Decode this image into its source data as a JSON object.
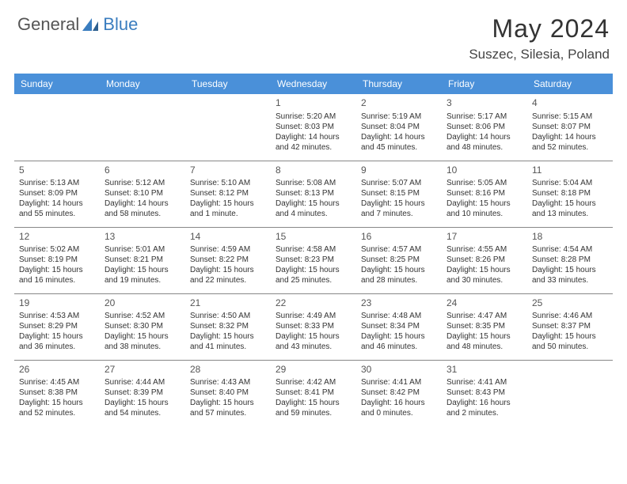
{
  "logo": {
    "general": "General",
    "blue": "Blue"
  },
  "title": "May 2024",
  "location": "Suszec, Silesia, Poland",
  "colors": {
    "header_bg": "#4a90d9",
    "header_text": "#ffffff",
    "border": "#888888",
    "logo_gray": "#555555",
    "logo_blue": "#3a7dbf",
    "text": "#333333"
  },
  "day_headers": [
    "Sunday",
    "Monday",
    "Tuesday",
    "Wednesday",
    "Thursday",
    "Friday",
    "Saturday"
  ],
  "weeks": [
    [
      null,
      null,
      null,
      {
        "d": "1",
        "sr": "5:20 AM",
        "ss": "8:03 PM",
        "dl": "14 hours and 42 minutes."
      },
      {
        "d": "2",
        "sr": "5:19 AM",
        "ss": "8:04 PM",
        "dl": "14 hours and 45 minutes."
      },
      {
        "d": "3",
        "sr": "5:17 AM",
        "ss": "8:06 PM",
        "dl": "14 hours and 48 minutes."
      },
      {
        "d": "4",
        "sr": "5:15 AM",
        "ss": "8:07 PM",
        "dl": "14 hours and 52 minutes."
      }
    ],
    [
      {
        "d": "5",
        "sr": "5:13 AM",
        "ss": "8:09 PM",
        "dl": "14 hours and 55 minutes."
      },
      {
        "d": "6",
        "sr": "5:12 AM",
        "ss": "8:10 PM",
        "dl": "14 hours and 58 minutes."
      },
      {
        "d": "7",
        "sr": "5:10 AM",
        "ss": "8:12 PM",
        "dl": "15 hours and 1 minute."
      },
      {
        "d": "8",
        "sr": "5:08 AM",
        "ss": "8:13 PM",
        "dl": "15 hours and 4 minutes."
      },
      {
        "d": "9",
        "sr": "5:07 AM",
        "ss": "8:15 PM",
        "dl": "15 hours and 7 minutes."
      },
      {
        "d": "10",
        "sr": "5:05 AM",
        "ss": "8:16 PM",
        "dl": "15 hours and 10 minutes."
      },
      {
        "d": "11",
        "sr": "5:04 AM",
        "ss": "8:18 PM",
        "dl": "15 hours and 13 minutes."
      }
    ],
    [
      {
        "d": "12",
        "sr": "5:02 AM",
        "ss": "8:19 PM",
        "dl": "15 hours and 16 minutes."
      },
      {
        "d": "13",
        "sr": "5:01 AM",
        "ss": "8:21 PM",
        "dl": "15 hours and 19 minutes."
      },
      {
        "d": "14",
        "sr": "4:59 AM",
        "ss": "8:22 PM",
        "dl": "15 hours and 22 minutes."
      },
      {
        "d": "15",
        "sr": "4:58 AM",
        "ss": "8:23 PM",
        "dl": "15 hours and 25 minutes."
      },
      {
        "d": "16",
        "sr": "4:57 AM",
        "ss": "8:25 PM",
        "dl": "15 hours and 28 minutes."
      },
      {
        "d": "17",
        "sr": "4:55 AM",
        "ss": "8:26 PM",
        "dl": "15 hours and 30 minutes."
      },
      {
        "d": "18",
        "sr": "4:54 AM",
        "ss": "8:28 PM",
        "dl": "15 hours and 33 minutes."
      }
    ],
    [
      {
        "d": "19",
        "sr": "4:53 AM",
        "ss": "8:29 PM",
        "dl": "15 hours and 36 minutes."
      },
      {
        "d": "20",
        "sr": "4:52 AM",
        "ss": "8:30 PM",
        "dl": "15 hours and 38 minutes."
      },
      {
        "d": "21",
        "sr": "4:50 AM",
        "ss": "8:32 PM",
        "dl": "15 hours and 41 minutes."
      },
      {
        "d": "22",
        "sr": "4:49 AM",
        "ss": "8:33 PM",
        "dl": "15 hours and 43 minutes."
      },
      {
        "d": "23",
        "sr": "4:48 AM",
        "ss": "8:34 PM",
        "dl": "15 hours and 46 minutes."
      },
      {
        "d": "24",
        "sr": "4:47 AM",
        "ss": "8:35 PM",
        "dl": "15 hours and 48 minutes."
      },
      {
        "d": "25",
        "sr": "4:46 AM",
        "ss": "8:37 PM",
        "dl": "15 hours and 50 minutes."
      }
    ],
    [
      {
        "d": "26",
        "sr": "4:45 AM",
        "ss": "8:38 PM",
        "dl": "15 hours and 52 minutes."
      },
      {
        "d": "27",
        "sr": "4:44 AM",
        "ss": "8:39 PM",
        "dl": "15 hours and 54 minutes."
      },
      {
        "d": "28",
        "sr": "4:43 AM",
        "ss": "8:40 PM",
        "dl": "15 hours and 57 minutes."
      },
      {
        "d": "29",
        "sr": "4:42 AM",
        "ss": "8:41 PM",
        "dl": "15 hours and 59 minutes."
      },
      {
        "d": "30",
        "sr": "4:41 AM",
        "ss": "8:42 PM",
        "dl": "16 hours and 0 minutes."
      },
      {
        "d": "31",
        "sr": "4:41 AM",
        "ss": "8:43 PM",
        "dl": "16 hours and 2 minutes."
      },
      null
    ]
  ],
  "labels": {
    "sunrise": "Sunrise: ",
    "sunset": "Sunset: ",
    "daylight": "Daylight: "
  }
}
